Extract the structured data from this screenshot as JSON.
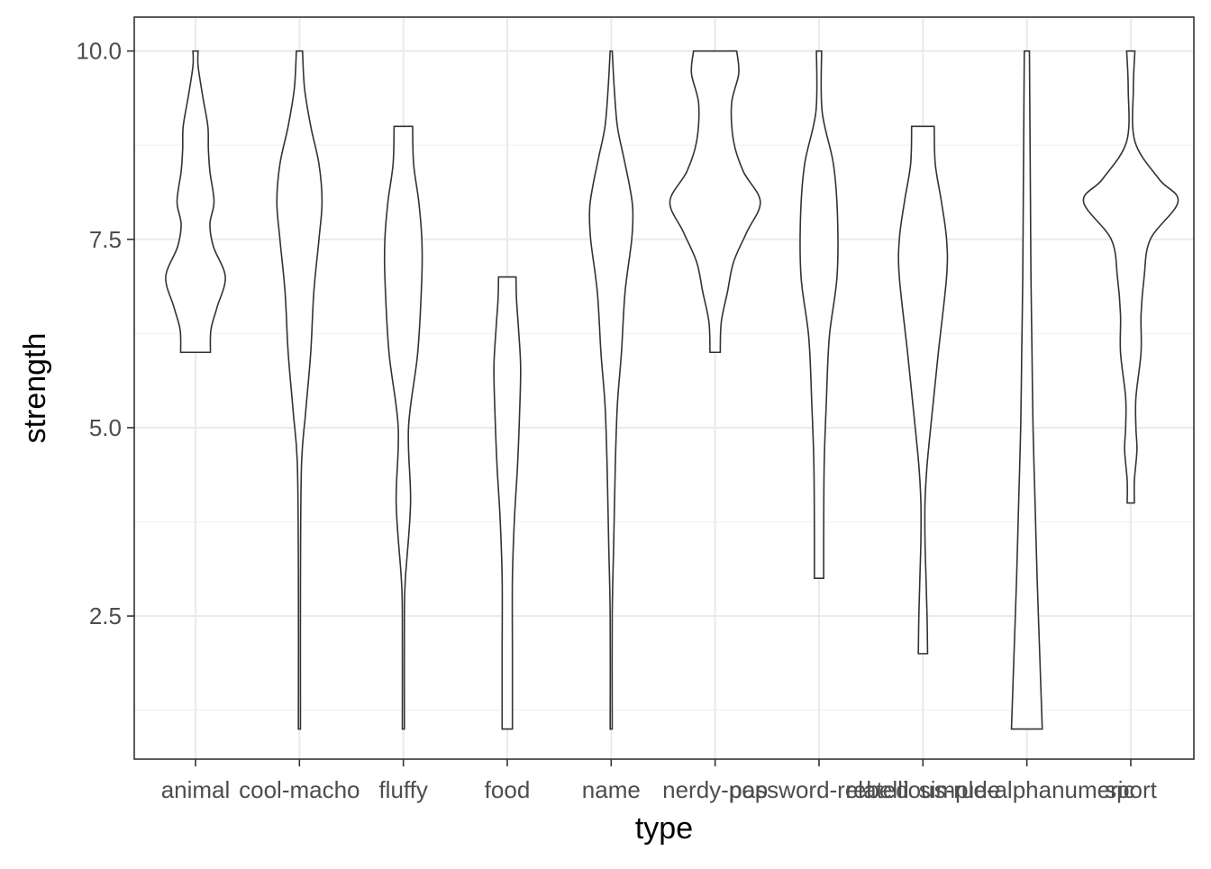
{
  "chart_data": {
    "type": "violin",
    "xlabel": "type",
    "ylabel": "strength",
    "ylim": [
      0.6,
      10.45
    ],
    "yticks": [
      2.5,
      5.0,
      7.5,
      10.0
    ],
    "ytick_labels": [
      "2.5",
      "5.0",
      "7.5",
      "10.0"
    ],
    "grid": true,
    "legend": "none",
    "categories": [
      "animal",
      "cool-macho",
      "fluffy",
      "food",
      "name",
      "nerdy-pop",
      "password-related",
      "rebellious-rude",
      "simple-alphanumeric",
      "sport"
    ],
    "violins": [
      {
        "category": "animal",
        "ymin": 6,
        "ymax": 10,
        "profile": [
          [
            6,
            0.29
          ],
          [
            6.3,
            0.3
          ],
          [
            6.6,
            0.42
          ],
          [
            7,
            0.58
          ],
          [
            7.4,
            0.35
          ],
          [
            7.7,
            0.28
          ],
          [
            8,
            0.36
          ],
          [
            8.4,
            0.28
          ],
          [
            8.7,
            0.25
          ],
          [
            9,
            0.24
          ],
          [
            9.4,
            0.14
          ],
          [
            9.8,
            0.05
          ],
          [
            10,
            0.05
          ]
        ]
      },
      {
        "category": "cool-macho",
        "ymin": 1,
        "ymax": 10,
        "profile": [
          [
            1,
            0.02
          ],
          [
            3,
            0.02
          ],
          [
            4.5,
            0.04
          ],
          [
            5.2,
            0.12
          ],
          [
            6,
            0.22
          ],
          [
            6.8,
            0.28
          ],
          [
            7.5,
            0.38
          ],
          [
            8,
            0.44
          ],
          [
            8.5,
            0.38
          ],
          [
            9,
            0.22
          ],
          [
            9.5,
            0.1
          ],
          [
            10,
            0.06
          ]
        ]
      },
      {
        "category": "fluffy",
        "ymin": 1,
        "ymax": 9,
        "profile": [
          [
            1,
            0.02
          ],
          [
            2.5,
            0.02
          ],
          [
            3,
            0.04
          ],
          [
            4,
            0.14
          ],
          [
            5,
            0.1
          ],
          [
            6,
            0.28
          ],
          [
            7,
            0.36
          ],
          [
            7.5,
            0.36
          ],
          [
            8,
            0.3
          ],
          [
            8.5,
            0.2
          ],
          [
            9,
            0.18
          ]
        ]
      },
      {
        "category": "food",
        "ymin": 1,
        "ymax": 7,
        "profile": [
          [
            1,
            0.1
          ],
          [
            2,
            0.1
          ],
          [
            3,
            0.1
          ],
          [
            3.8,
            0.14
          ],
          [
            4.5,
            0.2
          ],
          [
            5.2,
            0.24
          ],
          [
            5.8,
            0.26
          ],
          [
            6.3,
            0.22
          ],
          [
            6.7,
            0.18
          ],
          [
            7,
            0.17
          ]
        ]
      },
      {
        "category": "name",
        "ymin": 1,
        "ymax": 10,
        "profile": [
          [
            1,
            0.02
          ],
          [
            2.5,
            0.02
          ],
          [
            3.5,
            0.05
          ],
          [
            4.5,
            0.08
          ],
          [
            5.3,
            0.12
          ],
          [
            6,
            0.2
          ],
          [
            6.8,
            0.27
          ],
          [
            7.5,
            0.4
          ],
          [
            7.9,
            0.42
          ],
          [
            8.2,
            0.36
          ],
          [
            8.6,
            0.24
          ],
          [
            9,
            0.12
          ],
          [
            9.5,
            0.06
          ],
          [
            10,
            0.02
          ]
        ]
      },
      {
        "category": "nerdy-pop",
        "ymin": 6,
        "ymax": 10,
        "profile": [
          [
            6,
            0.1
          ],
          [
            6.4,
            0.12
          ],
          [
            6.8,
            0.24
          ],
          [
            7.2,
            0.36
          ],
          [
            7.6,
            0.62
          ],
          [
            8,
            0.88
          ],
          [
            8.4,
            0.55
          ],
          [
            8.8,
            0.36
          ],
          [
            9.3,
            0.32
          ],
          [
            9.7,
            0.46
          ],
          [
            10,
            0.42
          ]
        ]
      },
      {
        "category": "password-related",
        "ymin": 3,
        "ymax": 10,
        "profile": [
          [
            3,
            0.09
          ],
          [
            3.5,
            0.09
          ],
          [
            4.5,
            0.1
          ],
          [
            5.3,
            0.14
          ],
          [
            6.2,
            0.2
          ],
          [
            7,
            0.35
          ],
          [
            7.8,
            0.36
          ],
          [
            8.5,
            0.28
          ],
          [
            9.2,
            0.06
          ],
          [
            10,
            0.05
          ]
        ]
      },
      {
        "category": "rebellious-rude",
        "ymin": 2,
        "ymax": 9,
        "profile": [
          [
            2,
            0.09
          ],
          [
            2.5,
            0.08
          ],
          [
            3,
            0.06
          ],
          [
            3.5,
            0.04
          ],
          [
            4,
            0.04
          ],
          [
            4.5,
            0.08
          ],
          [
            5.2,
            0.18
          ],
          [
            6,
            0.3
          ],
          [
            7,
            0.46
          ],
          [
            7.5,
            0.46
          ],
          [
            8,
            0.36
          ],
          [
            8.5,
            0.24
          ],
          [
            9,
            0.22
          ]
        ]
      },
      {
        "category": "simple-alphanumeric",
        "ymin": 1,
        "ymax": 10,
        "profile": [
          [
            1,
            0.3
          ],
          [
            2,
            0.25
          ],
          [
            3,
            0.2
          ],
          [
            4,
            0.16
          ],
          [
            5,
            0.12
          ],
          [
            6,
            0.1
          ],
          [
            7,
            0.08
          ],
          [
            8,
            0.07
          ],
          [
            9,
            0.06
          ],
          [
            10,
            0.05
          ]
        ]
      },
      {
        "category": "sport",
        "ymin": 4,
        "ymax": 10,
        "profile": [
          [
            4,
            0.07
          ],
          [
            4.3,
            0.07
          ],
          [
            4.7,
            0.12
          ],
          [
            5,
            0.1
          ],
          [
            5.4,
            0.1
          ],
          [
            6,
            0.2
          ],
          [
            6.5,
            0.2
          ],
          [
            7,
            0.26
          ],
          [
            7.5,
            0.38
          ],
          [
            8,
            0.92
          ],
          [
            8.3,
            0.55
          ],
          [
            8.8,
            0.08
          ],
          [
            9.5,
            0.05
          ],
          [
            10,
            0.08
          ]
        ]
      }
    ]
  }
}
